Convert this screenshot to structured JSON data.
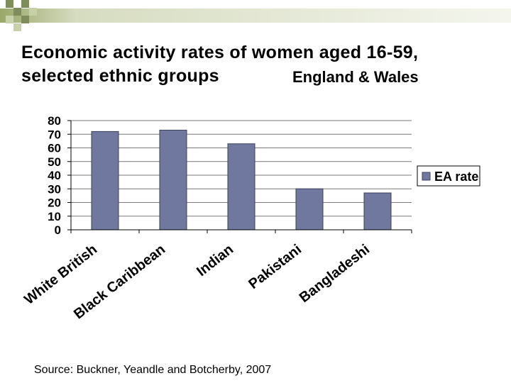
{
  "slide": {
    "title_line1": "Economic activity rates of women aged 16-59,",
    "title_line2": "selected ethnic groups",
    "region": "England & Wales",
    "source": "Source: Buckner, Yeandle and Botcherby, 2007"
  },
  "colors": {
    "bar": "#7078a0",
    "bar_stroke": "#3a3f5a",
    "accent": "#8fa33a",
    "deco_dark": "#7f8c5c",
    "deco_light": "#c8d0a8"
  },
  "chart_data": {
    "type": "bar",
    "title": "",
    "categories": [
      "White British",
      "Black Caribbean",
      "Indian",
      "Pakistani",
      "Bangladeshi"
    ],
    "series": [
      {
        "name": "EA rate",
        "values": [
          72,
          73,
          63,
          30,
          27
        ]
      }
    ],
    "ylim": [
      0,
      80
    ],
    "yticks": [
      0,
      10,
      20,
      30,
      40,
      50,
      60,
      70,
      80
    ],
    "xlabel": "",
    "ylabel": "",
    "grid": true,
    "legend": "right"
  }
}
